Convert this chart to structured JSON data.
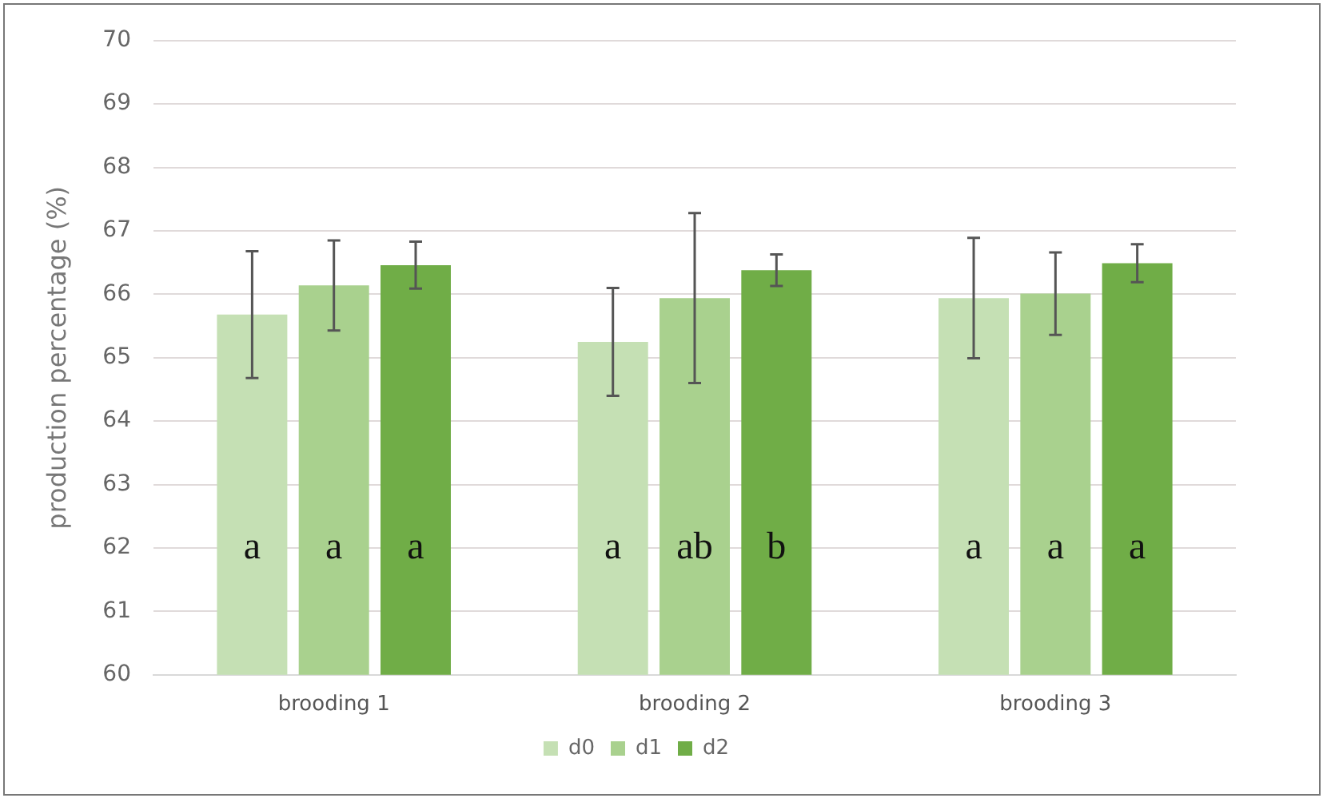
{
  "chart_data": {
    "type": "bar",
    "ylabel": "production percentage (%)",
    "categories": [
      "brooding 1",
      "brooding 2",
      "brooding 3"
    ],
    "series": [
      {
        "name": "d0",
        "color": "#c5e0b4",
        "values": [
          65.68,
          65.25,
          65.94
        ],
        "errors": [
          1.0,
          0.85,
          0.95
        ]
      },
      {
        "name": "d1",
        "color": "#a9d18e",
        "values": [
          66.14,
          65.94,
          66.01
        ],
        "errors": [
          0.71,
          1.34,
          0.65
        ]
      },
      {
        "name": "d2",
        "color": "#70ad47",
        "values": [
          66.46,
          66.38,
          66.49
        ],
        "errors": [
          0.37,
          0.25,
          0.3
        ]
      }
    ],
    "ylim": [
      60,
      70
    ],
    "yticks": [
      60,
      61,
      62,
      63,
      64,
      65,
      66,
      67,
      68,
      69,
      70
    ],
    "grid": "y",
    "legend": "bottom",
    "annotations": [
      "a",
      "a",
      "a",
      "a",
      "ab",
      "b",
      "a",
      "a",
      "a"
    ]
  }
}
